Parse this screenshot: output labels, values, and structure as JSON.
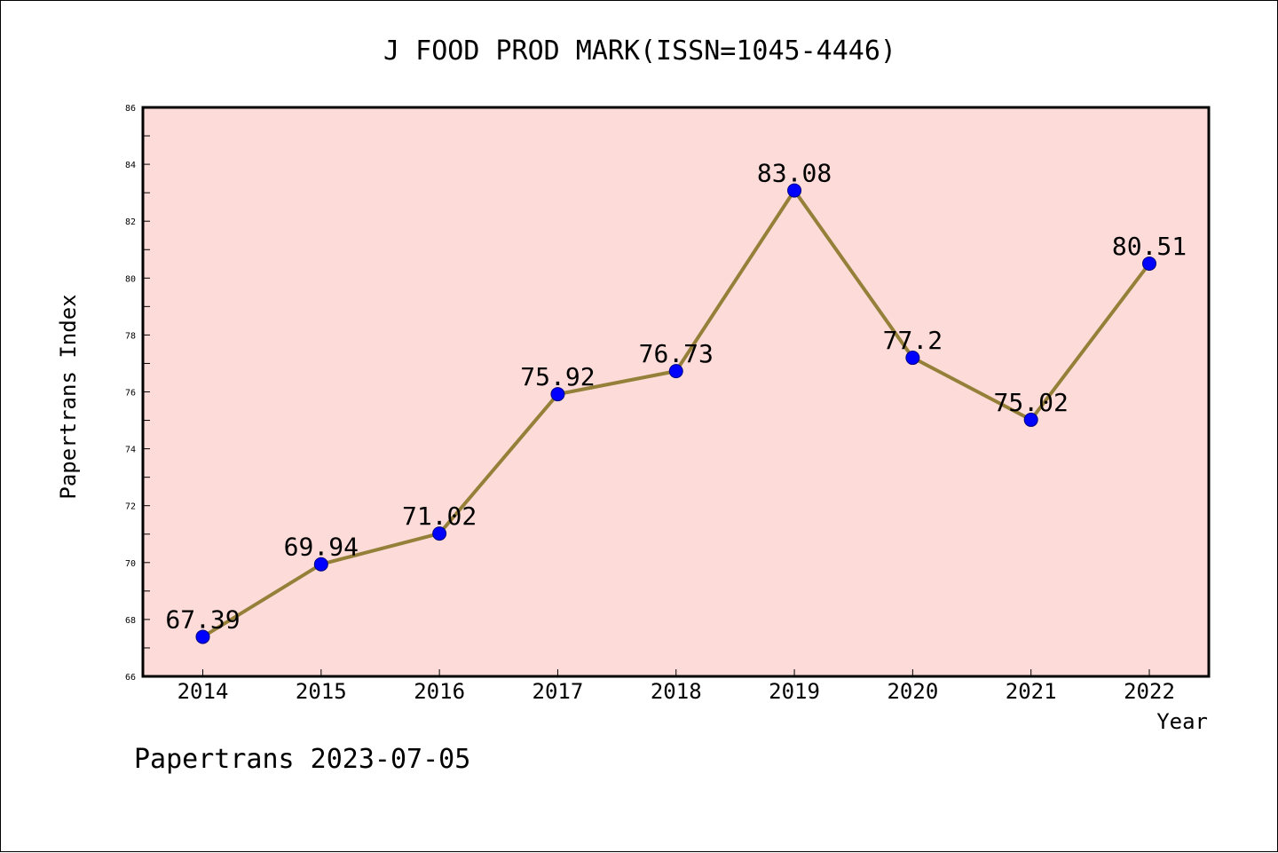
{
  "chart_data": {
    "type": "line",
    "title": "J FOOD PROD MARK(ISSN=1045-4446)",
    "xlabel": "Year",
    "ylabel": "Papertrans Index",
    "categories": [
      "2014",
      "2015",
      "2016",
      "2017",
      "2018",
      "2019",
      "2020",
      "2021",
      "2022"
    ],
    "series": [
      {
        "values": [
          67.39,
          69.94,
          71.02,
          75.92,
          76.73,
          83.08,
          77.2,
          75.02,
          80.51
        ],
        "labels": [
          "67.39",
          "69.94",
          "71.02",
          "75.92",
          "76.73",
          "83.08",
          "77.2",
          "75.02",
          "80.51"
        ]
      }
    ],
    "ylim": [
      66,
      86
    ],
    "yticks": [
      "66",
      "68",
      "70",
      "72",
      "74",
      "76",
      "78",
      "80",
      "82",
      "84",
      "86"
    ],
    "grid": false,
    "colors": {
      "plot_background": "#fddbd8",
      "line": "#958039",
      "marker_fill": "#0000ff",
      "marker_edge": "#000080"
    }
  },
  "footer": {
    "text": "Papertrans 2023-07-05"
  }
}
